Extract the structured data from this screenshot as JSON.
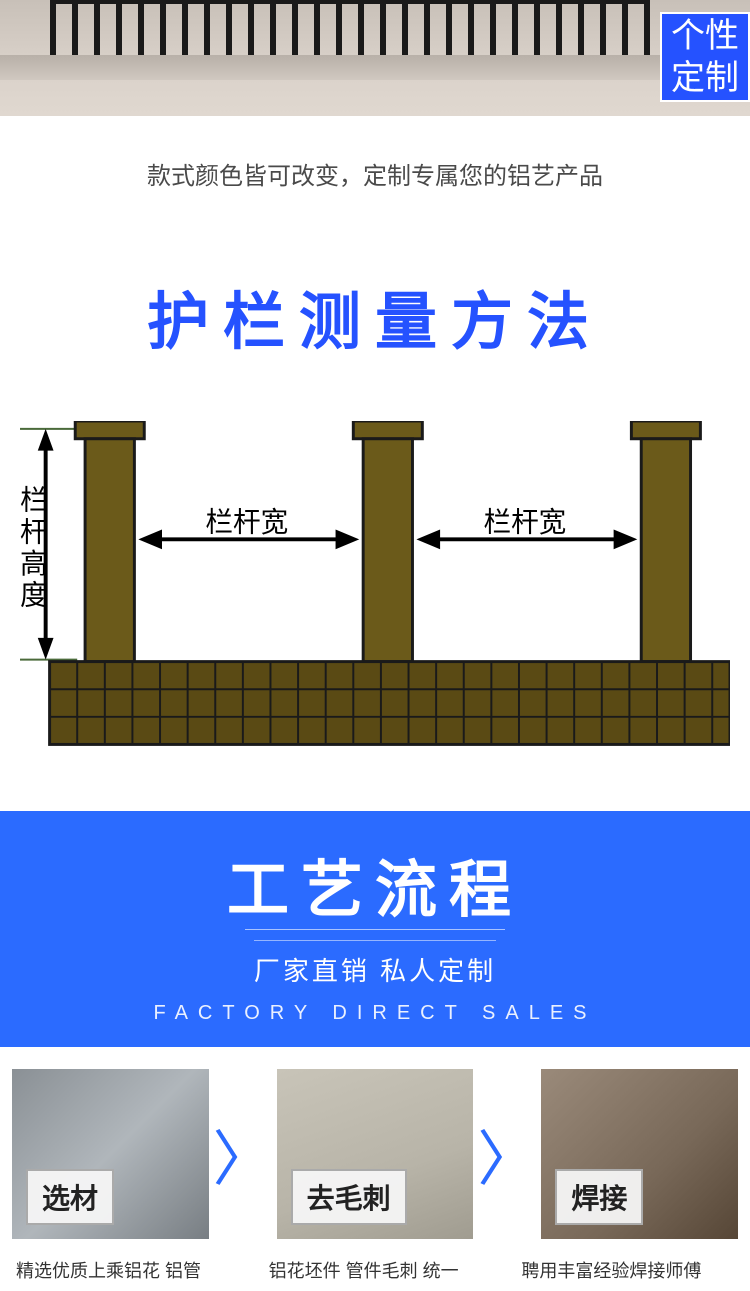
{
  "badge": {
    "line1": "个性",
    "line2": "定制"
  },
  "subtitle": "款式颜色皆可改变，定制专属您的铝艺产品",
  "measure_title": "护栏测量方法",
  "diagram": {
    "height_label": "栏杆高度",
    "width_label": "栏杆宽",
    "colors": {
      "post_fill": "#6b5a1a",
      "post_stroke": "#1a1a1a",
      "base_fill": "#5a4a14",
      "base_grid": "#1a1a1a",
      "arrow": "#000000",
      "text": "#000000",
      "guide_line": "#4a6a3a"
    }
  },
  "process": {
    "title": "工艺流程",
    "sub1": "厂家直销 私人定制",
    "sub2": "FACTORY DIRECT SALES"
  },
  "steps": [
    {
      "label": "选材",
      "caption": "精选优质上乘铝花 铝管"
    },
    {
      "label": "去毛刺",
      "caption": "铝花坯件 管件毛刺 统一"
    },
    {
      "label": "焊接",
      "caption": "聘用丰富经验焊接师傅"
    }
  ],
  "arrow_glyph": "〉"
}
